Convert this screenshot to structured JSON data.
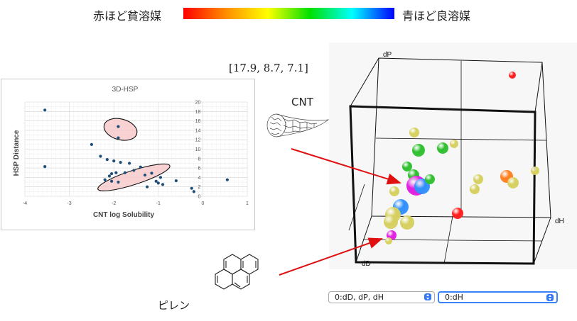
{
  "legend": {
    "left_label": "赤ほど貧溶媒",
    "right_label": "青ほど良溶媒",
    "gradient_colors": [
      "#ff0000",
      "#ff8c00",
      "#ffff00",
      "#00e000",
      "#00ffff",
      "#0000ff"
    ]
  },
  "annotations": {
    "coords": "[17.9, 8.7, 7.1]",
    "cnt": "CNT",
    "pyrene": "ピレン",
    "arrow_color": "#e01010"
  },
  "controls": {
    "select_1": "0:dD, dP, dH",
    "select_2": "0:dH"
  },
  "chart_data": [
    {
      "type": "scatter",
      "title": "3D-HSP",
      "xlabel": "CNT log Solubility",
      "ylabel": "HSP Distance",
      "xlim": [
        -4,
        1
      ],
      "ylim": [
        0,
        20
      ],
      "x_ticks": [
        "-4",
        "-3",
        "-2",
        "-1",
        "0",
        "1"
      ],
      "y_ticks": [
        "0",
        "2",
        "4",
        "6",
        "8",
        "10",
        "12",
        "14",
        "16",
        "18",
        "20"
      ],
      "grid": true,
      "point_color": "#1f4e79",
      "points": [
        [
          -3.55,
          18.3
        ],
        [
          -3.55,
          6.3
        ],
        [
          -2.5,
          11.0
        ],
        [
          -2.3,
          8.5
        ],
        [
          -2.2,
          3.5
        ],
        [
          -1.9,
          14.8
        ],
        [
          -1.9,
          12.4
        ],
        [
          -2.15,
          7.8
        ],
        [
          -2.0,
          7.5
        ],
        [
          -1.95,
          5.0
        ],
        [
          -2.05,
          4.8
        ],
        [
          -2.1,
          4.3
        ],
        [
          -2.05,
          3.2
        ],
        [
          -1.9,
          3.0
        ],
        [
          -1.85,
          7.2
        ],
        [
          -1.75,
          5.0
        ],
        [
          -1.65,
          7.0
        ],
        [
          -1.55,
          5.5
        ],
        [
          -1.4,
          6.2
        ],
        [
          -1.3,
          4.5
        ],
        [
          -1.25,
          2.0
        ],
        [
          -1.15,
          4.9
        ],
        [
          -1.05,
          3.2
        ],
        [
          -1.0,
          2.8
        ],
        [
          -0.95,
          4.0
        ],
        [
          -0.9,
          2.5
        ],
        [
          -0.6,
          3.3
        ],
        [
          -0.25,
          1.7
        ],
        [
          -0.2,
          1.0
        ],
        [
          0.55,
          3.5
        ]
      ],
      "highlight_regions": [
        {
          "shape": "ellipse",
          "center": [
            -1.85,
            14.2
          ],
          "radii": [
            0.38,
            2.2
          ],
          "angle_deg": 15,
          "fill": "#f8c8c8"
        },
        {
          "shape": "ellipse",
          "center": [
            -1.55,
            4.0
          ],
          "radii": [
            0.85,
            1.5
          ],
          "angle_deg": -18,
          "fill": "#f8c8c8"
        }
      ]
    },
    {
      "type": "scatter",
      "title": "",
      "xlabel": "dH",
      "ylabel": "dP",
      "zlabel": "dD",
      "projection": "3d",
      "x_ticks": [],
      "y_ticks": [],
      "points": [
        {
          "color": "#ff2020",
          "size": 1.0
        },
        {
          "color": "#d6d060",
          "size": 1.0
        },
        {
          "color": "#d6d060",
          "size": 1.0
        },
        {
          "color": "#30c030",
          "size": 1.1
        },
        {
          "color": "#30c030",
          "size": 1.0
        },
        {
          "color": "#30c030",
          "size": 1.0
        },
        {
          "color": "#30c030",
          "size": 1.2
        },
        {
          "color": "#e020e0",
          "size": 1.6
        },
        {
          "color": "#3090ff",
          "size": 1.4
        },
        {
          "color": "#30c030",
          "size": 1.0
        },
        {
          "color": "#d6d060",
          "size": 1.0
        },
        {
          "color": "#3090ff",
          "size": 1.3
        },
        {
          "color": "#d6d060",
          "size": 1.2
        },
        {
          "color": "#d6d060",
          "size": 1.2
        },
        {
          "color": "#d6d060",
          "size": 1.1
        },
        {
          "color": "#ff2020",
          "size": 1.0
        },
        {
          "color": "#d6d060",
          "size": 1.0
        },
        {
          "color": "#d6d060",
          "size": 1.0
        },
        {
          "color": "#ff8020",
          "size": 1.2
        },
        {
          "color": "#d6d060",
          "size": 1.1
        },
        {
          "color": "#d6d060",
          "size": 1.0
        },
        {
          "color": "#e020e0",
          "size": 1.1
        },
        {
          "color": "#d6d060",
          "size": 1.0
        }
      ]
    }
  ]
}
